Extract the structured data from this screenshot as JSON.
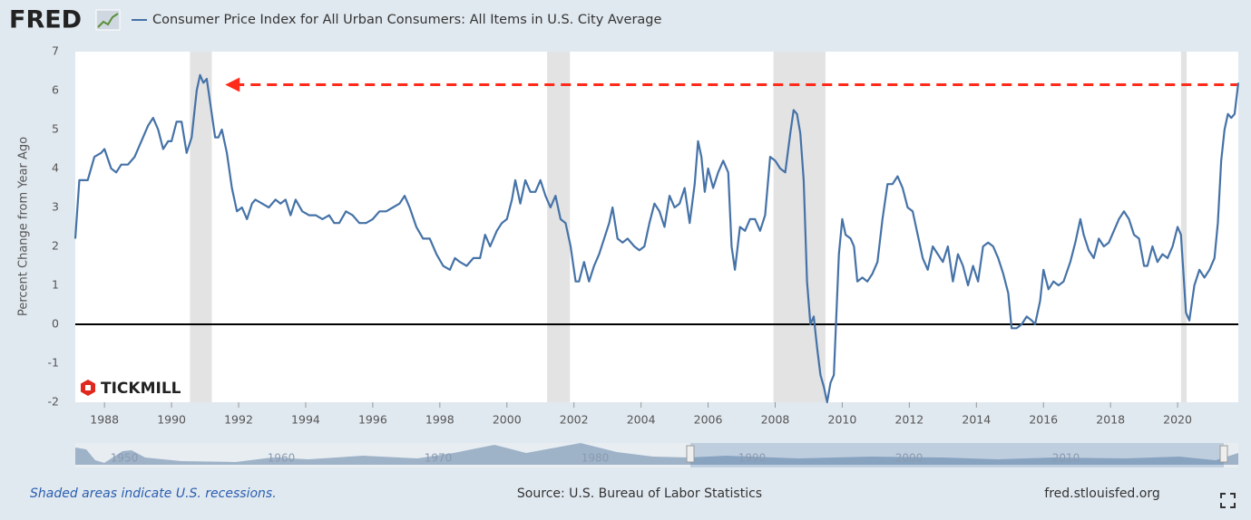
{
  "header": {
    "logo": "FRED"
  },
  "watermark": "TICKMILL",
  "footer": {
    "note": "Shaded areas indicate U.S. recessions.",
    "source": "Source: U.S. Bureau of Labor Statistics",
    "site": "fred.stlouisfed.org"
  },
  "navigator_labels": [
    "1950",
    "1960",
    "1970",
    "1980",
    "1990",
    "2000",
    "2010"
  ],
  "chart_data": {
    "type": "line",
    "y_label": "Percent Change from Year Ago",
    "xlim": [
      1987.13,
      2021.81
    ],
    "ylim": [
      -2,
      7
    ],
    "xticks": [
      1988,
      1990,
      1992,
      1994,
      1996,
      1998,
      2000,
      2002,
      2004,
      2006,
      2008,
      2010,
      2012,
      2014,
      2016,
      2018,
      2020
    ],
    "yticks": [
      -2,
      -1,
      0,
      1,
      2,
      3,
      4,
      5,
      6,
      7
    ],
    "grid": false,
    "recessions": [
      [
        1990.55,
        1991.2
      ],
      [
        2001.2,
        2001.88
      ],
      [
        2007.95,
        2009.5
      ],
      [
        2020.1,
        2020.27
      ]
    ],
    "recession_color": "#e3e3e3",
    "annotation": {
      "y": 6.15,
      "x": [
        1991.6,
        2021.81
      ],
      "color": "#ff2a1a"
    },
    "x": [
      1987.13,
      1987.25,
      1987.5,
      1987.7,
      1987.9,
      1988.0,
      1988.2,
      1988.35,
      1988.5,
      1988.7,
      1988.9,
      1989.1,
      1989.3,
      1989.45,
      1989.6,
      1989.75,
      1989.9,
      1990.0,
      1990.15,
      1990.3,
      1990.45,
      1990.6,
      1990.75,
      1990.85,
      1990.95,
      1991.05,
      1991.15,
      1991.3,
      1991.4,
      1991.5,
      1991.65,
      1991.8,
      1991.95,
      1992.1,
      1992.25,
      1992.4,
      1992.5,
      1992.7,
      1992.9,
      1993.1,
      1993.25,
      1993.4,
      1993.55,
      1993.7,
      1993.9,
      1994.1,
      1994.3,
      1994.5,
      1994.7,
      1994.85,
      1995.0,
      1995.2,
      1995.4,
      1995.6,
      1995.8,
      1996.0,
      1996.2,
      1996.4,
      1996.6,
      1996.8,
      1996.95,
      1997.1,
      1997.3,
      1997.5,
      1997.7,
      1997.9,
      1998.1,
      1998.3,
      1998.45,
      1998.6,
      1998.8,
      1999.0,
      1999.2,
      1999.35,
      1999.5,
      1999.7,
      1999.85,
      2000.0,
      2000.15,
      2000.25,
      2000.4,
      2000.55,
      2000.7,
      2000.85,
      2001.0,
      2001.15,
      2001.3,
      2001.45,
      2001.6,
      2001.75,
      2001.9,
      2002.05,
      2002.15,
      2002.3,
      2002.45,
      2002.6,
      2002.75,
      2002.9,
      2003.05,
      2003.15,
      2003.3,
      2003.45,
      2003.6,
      2003.8,
      2003.95,
      2004.1,
      2004.25,
      2004.4,
      2004.55,
      2004.7,
      2004.85,
      2005.0,
      2005.15,
      2005.3,
      2005.45,
      2005.6,
      2005.7,
      2005.8,
      2005.9,
      2006.0,
      2006.15,
      2006.3,
      2006.45,
      2006.6,
      2006.7,
      2006.8,
      2006.95,
      2007.1,
      2007.25,
      2007.4,
      2007.55,
      2007.7,
      2007.85,
      2008.0,
      2008.15,
      2008.3,
      2008.45,
      2008.55,
      2008.65,
      2008.75,
      2008.85,
      2008.95,
      2009.05,
      2009.15,
      2009.25,
      2009.35,
      2009.45,
      2009.55,
      2009.65,
      2009.75,
      2009.9,
      2010.0,
      2010.1,
      2010.25,
      2010.35,
      2010.45,
      2010.6,
      2010.75,
      2010.9,
      2011.05,
      2011.2,
      2011.35,
      2011.5,
      2011.65,
      2011.8,
      2011.95,
      2012.1,
      2012.25,
      2012.4,
      2012.55,
      2012.7,
      2012.85,
      2013.0,
      2013.15,
      2013.3,
      2013.45,
      2013.6,
      2013.75,
      2013.9,
      2014.05,
      2014.2,
      2014.35,
      2014.5,
      2014.65,
      2014.8,
      2014.95,
      2015.05,
      2015.2,
      2015.35,
      2015.5,
      2015.65,
      2015.75,
      2015.9,
      2016.0,
      2016.15,
      2016.3,
      2016.45,
      2016.6,
      2016.8,
      2016.95,
      2017.1,
      2017.2,
      2017.35,
      2017.5,
      2017.65,
      2017.8,
      2017.95,
      2018.1,
      2018.25,
      2018.4,
      2018.55,
      2018.7,
      2018.85,
      2019.0,
      2019.1,
      2019.25,
      2019.4,
      2019.55,
      2019.7,
      2019.85,
      2020.0,
      2020.1,
      2020.25,
      2020.35,
      2020.5,
      2020.65,
      2020.8,
      2020.95,
      2021.1,
      2021.2,
      2021.3,
      2021.4,
      2021.5,
      2021.6,
      2021.7,
      2021.81
    ],
    "series": [
      {
        "name": "Consumer Price Index for All Urban Consumers: All Items in U.S. City Average",
        "color": "#4572a7",
        "values": [
          2.2,
          3.7,
          3.7,
          4.3,
          4.4,
          4.5,
          4.0,
          3.9,
          4.1,
          4.1,
          4.3,
          4.7,
          5.1,
          5.3,
          5.0,
          4.5,
          4.7,
          4.7,
          5.2,
          5.2,
          4.4,
          4.8,
          6.0,
          6.4,
          6.2,
          6.3,
          5.7,
          4.8,
          4.8,
          5.0,
          4.4,
          3.5,
          2.9,
          3.0,
          2.7,
          3.1,
          3.2,
          3.1,
          3.0,
          3.2,
          3.1,
          3.2,
          2.8,
          3.2,
          2.9,
          2.8,
          2.8,
          2.7,
          2.8,
          2.6,
          2.6,
          2.9,
          2.8,
          2.6,
          2.6,
          2.7,
          2.9,
          2.9,
          3.0,
          3.1,
          3.3,
          3.0,
          2.5,
          2.2,
          2.2,
          1.8,
          1.5,
          1.4,
          1.7,
          1.6,
          1.5,
          1.7,
          1.7,
          2.3,
          2.0,
          2.4,
          2.6,
          2.7,
          3.2,
          3.7,
          3.1,
          3.7,
          3.4,
          3.4,
          3.7,
          3.3,
          3.0,
          3.3,
          2.7,
          2.6,
          2.0,
          1.1,
          1.1,
          1.6,
          1.1,
          1.5,
          1.8,
          2.2,
          2.6,
          3.0,
          2.2,
          2.1,
          2.2,
          2.0,
          1.9,
          2.0,
          2.6,
          3.1,
          2.9,
          2.5,
          3.3,
          3.0,
          3.1,
          3.5,
          2.6,
          3.6,
          4.7,
          4.3,
          3.4,
          4.0,
          3.5,
          3.9,
          4.2,
          3.9,
          2.0,
          1.4,
          2.5,
          2.4,
          2.7,
          2.7,
          2.4,
          2.8,
          4.3,
          4.2,
          4.0,
          3.9,
          4.9,
          5.5,
          5.4,
          4.9,
          3.7,
          1.1,
          0.0,
          0.2,
          -0.6,
          -1.3,
          -1.6,
          -2.0,
          -1.5,
          -1.3,
          1.8,
          2.7,
          2.3,
          2.2,
          2.0,
          1.1,
          1.2,
          1.1,
          1.3,
          1.6,
          2.7,
          3.6,
          3.6,
          3.8,
          3.5,
          3.0,
          2.9,
          2.3,
          1.7,
          1.4,
          2.0,
          1.8,
          1.6,
          2.0,
          1.1,
          1.8,
          1.5,
          1.0,
          1.5,
          1.1,
          2.0,
          2.1,
          2.0,
          1.7,
          1.3,
          0.8,
          -0.1,
          -0.1,
          0.0,
          0.2,
          0.1,
          0.0,
          0.6,
          1.4,
          0.9,
          1.1,
          1.0,
          1.1,
          1.6,
          2.1,
          2.7,
          2.3,
          1.9,
          1.7,
          2.2,
          2.0,
          2.1,
          2.4,
          2.7,
          2.9,
          2.7,
          2.3,
          2.2,
          1.5,
          1.5,
          2.0,
          1.6,
          1.8,
          1.7,
          2.0,
          2.5,
          2.3,
          0.3,
          0.1,
          1.0,
          1.4,
          1.2,
          1.4,
          1.7,
          2.6,
          4.2,
          5.0,
          5.4,
          5.3,
          5.4,
          6.2
        ]
      }
    ]
  }
}
